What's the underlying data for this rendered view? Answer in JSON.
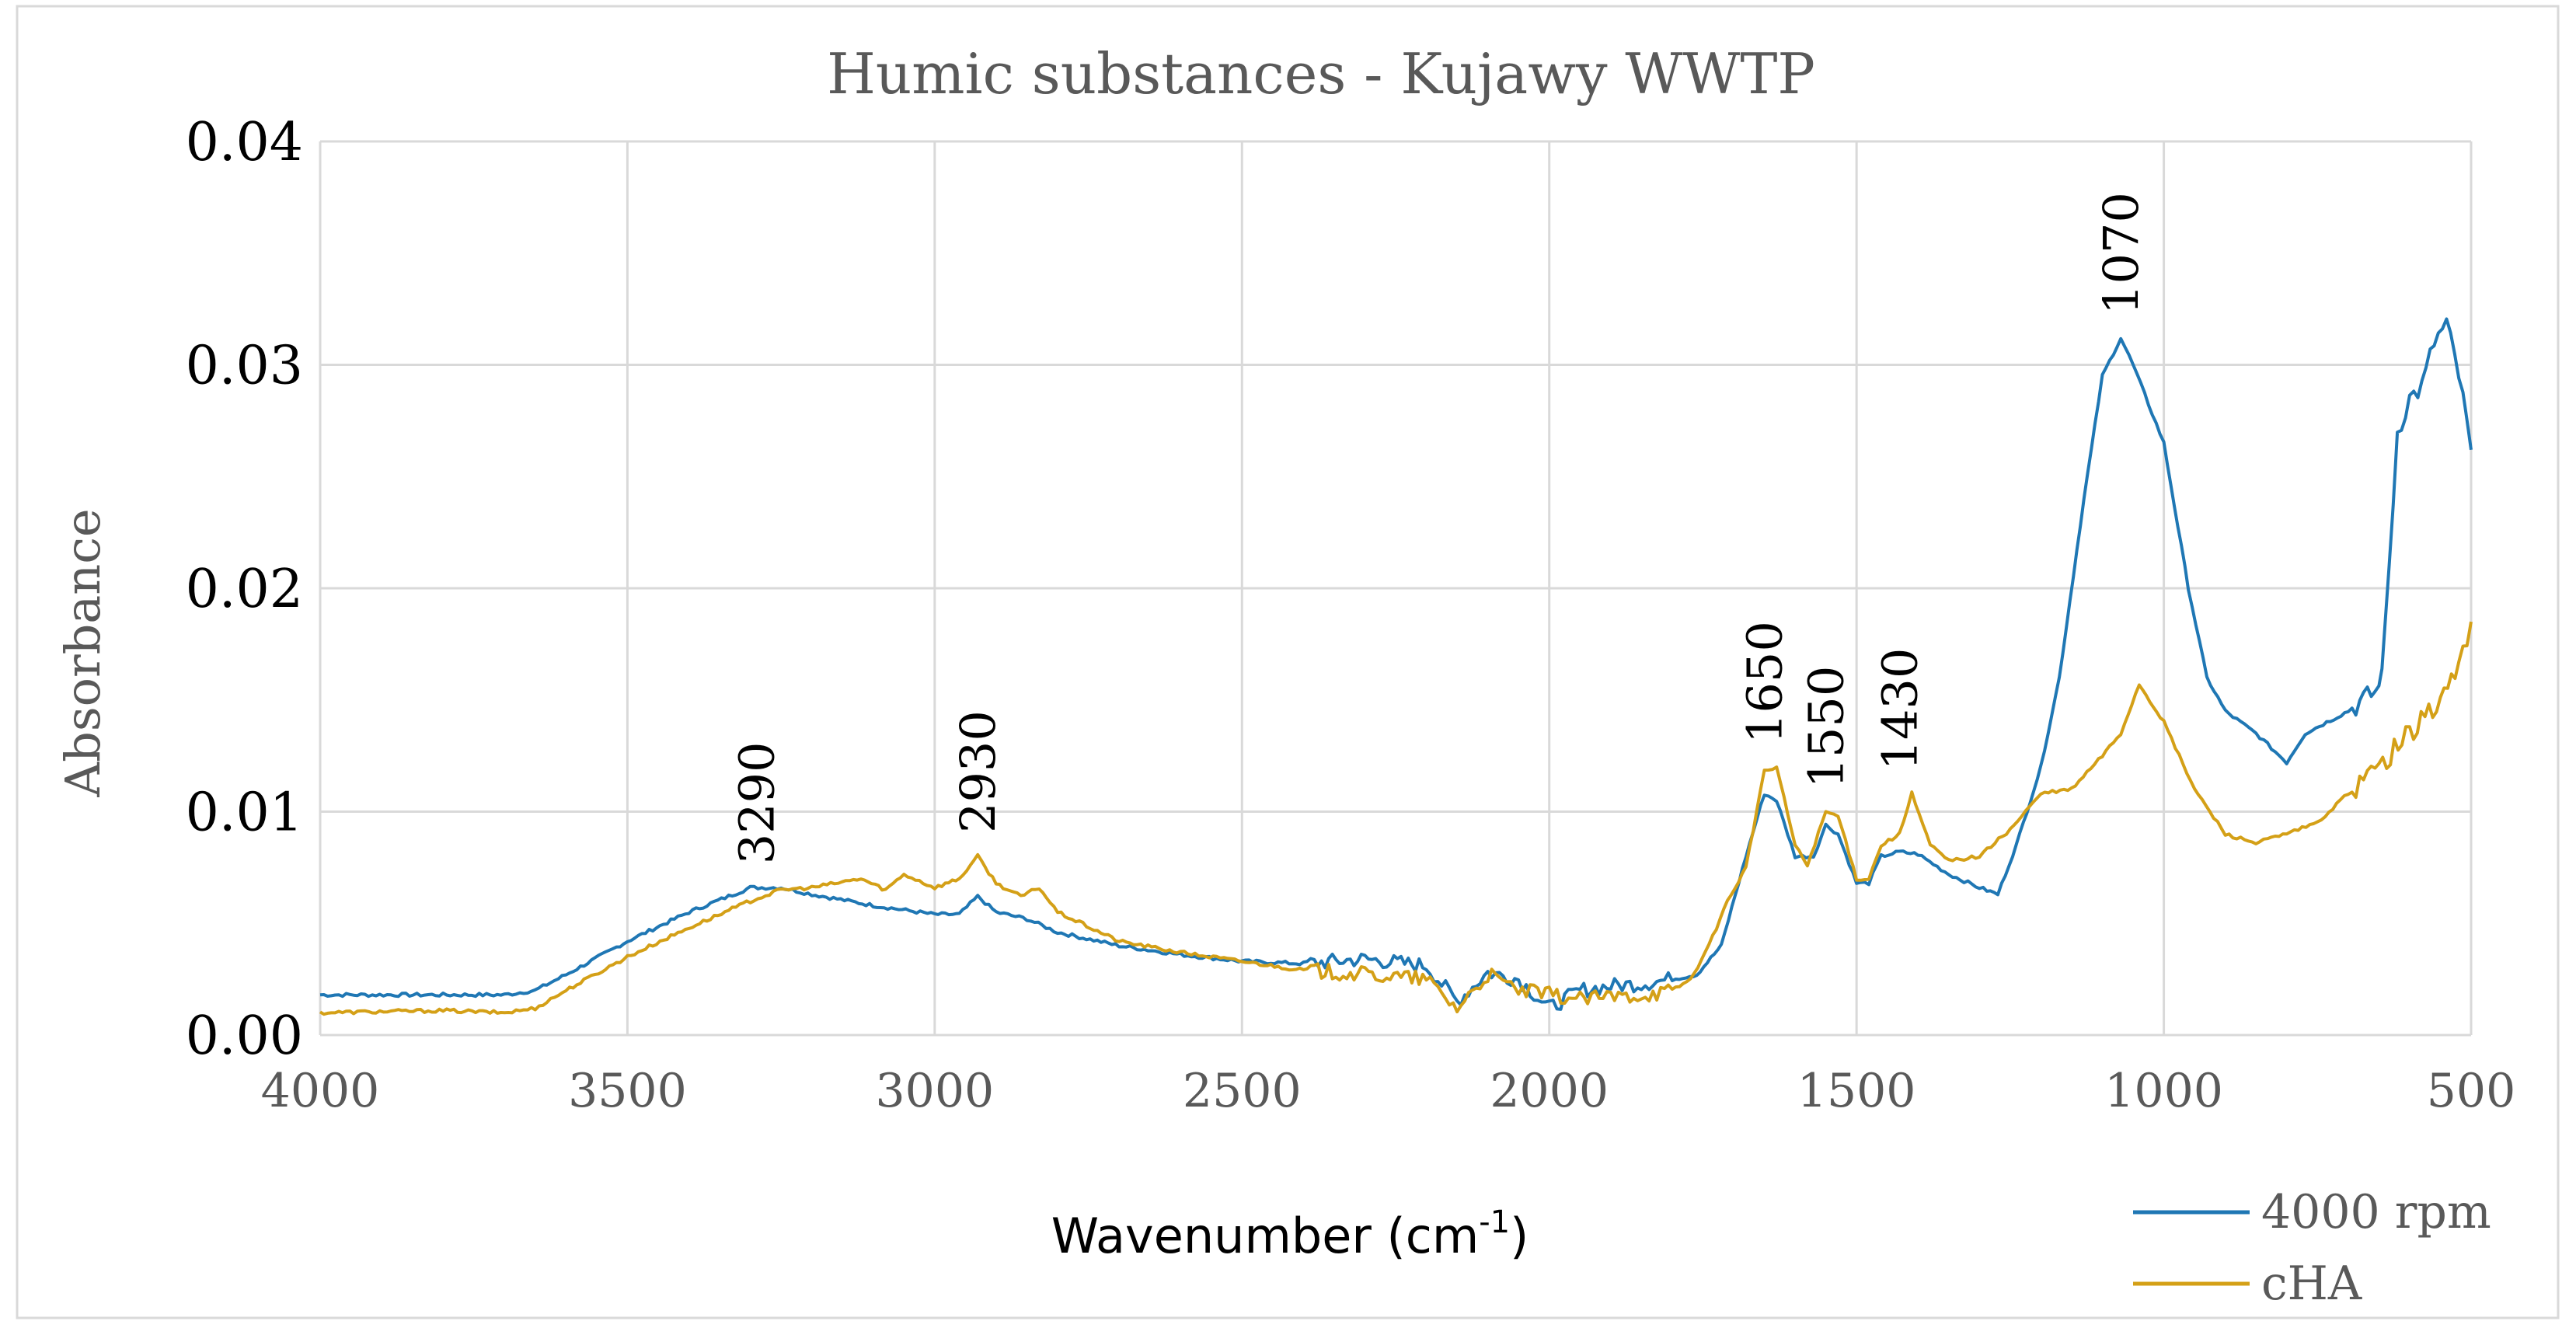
{
  "chart_data": {
    "type": "line",
    "title": "Humic substances - Kujawy WWTP",
    "xlabel": "Wavenumber (cm",
    "xlabel_sup": "-1",
    "xlabel_close": ")",
    "ylabel": "Absorbance",
    "xlim": [
      4000,
      500
    ],
    "ylim": [
      0,
      0.04
    ],
    "x_ticks": [
      4000,
      3500,
      3000,
      2500,
      2000,
      1500,
      1000,
      500
    ],
    "x_tick_labels": [
      "4000",
      "3500",
      "3000",
      "2500",
      "2000",
      "1500",
      "1000",
      "500"
    ],
    "y_ticks": [
      0,
      0.01,
      0.02,
      0.03,
      0.04
    ],
    "y_tick_labels": [
      "0.00",
      "0.01",
      "0.02",
      "0.03",
      "0.04"
    ],
    "grid": true,
    "legend_position": "bottom-right",
    "series": [
      {
        "name": "4000 rpm",
        "color": "#1f77b4",
        "points": [
          [
            4000,
            0.0018
          ],
          [
            3800,
            0.0018
          ],
          [
            3700,
            0.0018
          ],
          [
            3650,
            0.002
          ],
          [
            3600,
            0.0027
          ],
          [
            3500,
            0.0042
          ],
          [
            3400,
            0.0055
          ],
          [
            3300,
            0.0066
          ],
          [
            3250,
            0.0066
          ],
          [
            3200,
            0.0063
          ],
          [
            3100,
            0.0058
          ],
          [
            3000,
            0.0054
          ],
          [
            2960,
            0.0054
          ],
          [
            2930,
            0.0062
          ],
          [
            2900,
            0.0055
          ],
          [
            2850,
            0.0052
          ],
          [
            2800,
            0.0046
          ],
          [
            2700,
            0.004
          ],
          [
            2600,
            0.0036
          ],
          [
            2500,
            0.0033
          ],
          [
            2400,
            0.0032
          ],
          [
            2300,
            0.0034
          ],
          [
            2200,
            0.0031
          ],
          [
            2150,
            0.0015
          ],
          [
            2100,
            0.0028
          ],
          [
            2050,
            0.0025
          ],
          [
            2000,
            0.0012
          ],
          [
            1950,
            0.002
          ],
          [
            1900,
            0.0022
          ],
          [
            1850,
            0.0023
          ],
          [
            1800,
            0.0025
          ],
          [
            1760,
            0.0027
          ],
          [
            1720,
            0.004
          ],
          [
            1680,
            0.008
          ],
          [
            1650,
            0.0108
          ],
          [
            1630,
            0.0105
          ],
          [
            1600,
            0.008
          ],
          [
            1570,
            0.008
          ],
          [
            1550,
            0.0094
          ],
          [
            1530,
            0.009
          ],
          [
            1500,
            0.0068
          ],
          [
            1480,
            0.0068
          ],
          [
            1460,
            0.008
          ],
          [
            1430,
            0.0082
          ],
          [
            1400,
            0.0081
          ],
          [
            1350,
            0.0072
          ],
          [
            1300,
            0.0066
          ],
          [
            1270,
            0.0063
          ],
          [
            1240,
            0.0085
          ],
          [
            1200,
            0.012
          ],
          [
            1170,
            0.016
          ],
          [
            1130,
            0.024
          ],
          [
            1100,
            0.0295
          ],
          [
            1070,
            0.0312
          ],
          [
            1050,
            0.03
          ],
          [
            1000,
            0.0265
          ],
          [
            960,
            0.02
          ],
          [
            930,
            0.016
          ],
          [
            900,
            0.0145
          ],
          [
            850,
            0.0135
          ],
          [
            800,
            0.0122
          ],
          [
            770,
            0.0135
          ],
          [
            700,
            0.0145
          ],
          [
            650,
            0.0155
          ],
          [
            640,
            0.018
          ],
          [
            620,
            0.027
          ],
          [
            600,
            0.0285
          ],
          [
            580,
            0.029
          ],
          [
            560,
            0.031
          ],
          [
            540,
            0.0318
          ],
          [
            520,
            0.0295
          ],
          [
            500,
            0.0262
          ]
        ]
      },
      {
        "name": "cHA",
        "color": "#d4a017",
        "points": [
          [
            4000,
            0.001
          ],
          [
            3800,
            0.0011
          ],
          [
            3700,
            0.001
          ],
          [
            3650,
            0.0012
          ],
          [
            3600,
            0.002
          ],
          [
            3500,
            0.0035
          ],
          [
            3400,
            0.0048
          ],
          [
            3300,
            0.006
          ],
          [
            3250,
            0.0065
          ],
          [
            3200,
            0.0066
          ],
          [
            3120,
            0.007
          ],
          [
            3080,
            0.0065
          ],
          [
            3050,
            0.0072
          ],
          [
            3000,
            0.0066
          ],
          [
            2960,
            0.007
          ],
          [
            2930,
            0.008
          ],
          [
            2900,
            0.0068
          ],
          [
            2860,
            0.0062
          ],
          [
            2830,
            0.0066
          ],
          [
            2800,
            0.0055
          ],
          [
            2700,
            0.0042
          ],
          [
            2600,
            0.0037
          ],
          [
            2500,
            0.0033
          ],
          [
            2400,
            0.0029
          ],
          [
            2300,
            0.0027
          ],
          [
            2200,
            0.0025
          ],
          [
            2150,
            0.0012
          ],
          [
            2100,
            0.0027
          ],
          [
            2050,
            0.002
          ],
          [
            2000,
            0.0018
          ],
          [
            1950,
            0.0016
          ],
          [
            1900,
            0.0017
          ],
          [
            1850,
            0.0018
          ],
          [
            1800,
            0.002
          ],
          [
            1770,
            0.0025
          ],
          [
            1740,
            0.004
          ],
          [
            1710,
            0.006
          ],
          [
            1680,
            0.0075
          ],
          [
            1650,
            0.0118
          ],
          [
            1630,
            0.012
          ],
          [
            1600,
            0.0085
          ],
          [
            1580,
            0.0076
          ],
          [
            1550,
            0.01
          ],
          [
            1530,
            0.0098
          ],
          [
            1500,
            0.007
          ],
          [
            1480,
            0.007
          ],
          [
            1460,
            0.0085
          ],
          [
            1430,
            0.009
          ],
          [
            1410,
            0.0108
          ],
          [
            1380,
            0.0085
          ],
          [
            1350,
            0.0078
          ],
          [
            1300,
            0.008
          ],
          [
            1250,
            0.0092
          ],
          [
            1200,
            0.0108
          ],
          [
            1150,
            0.011
          ],
          [
            1100,
            0.0125
          ],
          [
            1070,
            0.0135
          ],
          [
            1040,
            0.0157
          ],
          [
            1000,
            0.014
          ],
          [
            950,
            0.011
          ],
          [
            900,
            0.009
          ],
          [
            850,
            0.0086
          ],
          [
            800,
            0.009
          ],
          [
            750,
            0.0095
          ],
          [
            700,
            0.0108
          ],
          [
            650,
            0.012
          ],
          [
            600,
            0.0135
          ],
          [
            550,
            0.015
          ],
          [
            520,
            0.0165
          ],
          [
            500,
            0.0185
          ]
        ]
      }
    ],
    "annotations": [
      {
        "label": "3290",
        "x": 3290,
        "y": 0.0066
      },
      {
        "label": "2930",
        "x": 2930,
        "y": 0.008
      },
      {
        "label": "1650",
        "x": 1650,
        "y": 0.012
      },
      {
        "label": "1550",
        "x": 1550,
        "y": 0.01
      },
      {
        "label": "1430",
        "x": 1430,
        "y": 0.0108
      },
      {
        "label": "1070",
        "x": 1070,
        "y": 0.0312
      }
    ]
  }
}
